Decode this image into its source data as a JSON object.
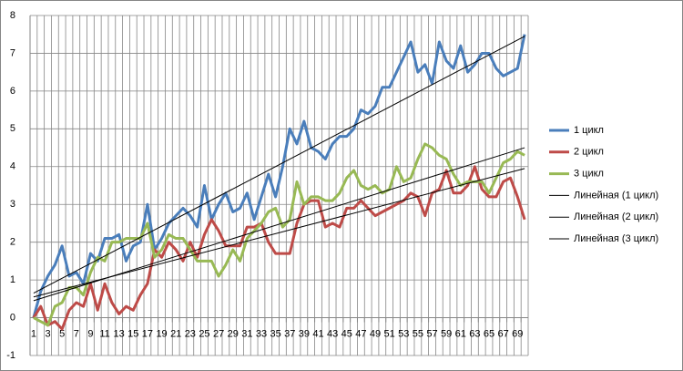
{
  "chart_data": {
    "type": "line",
    "categories": [
      1,
      null,
      3,
      null,
      5,
      null,
      7,
      null,
      9,
      null,
      11,
      null,
      13,
      null,
      15,
      null,
      17,
      null,
      19,
      null,
      21,
      null,
      23,
      null,
      25,
      null,
      27,
      null,
      29,
      null,
      31,
      null,
      33,
      null,
      35,
      null,
      37,
      null,
      39,
      null,
      41,
      null,
      43,
      null,
      45,
      null,
      47,
      null,
      49,
      null,
      51,
      null,
      53,
      null,
      55,
      null,
      57,
      null,
      59,
      null,
      61,
      null,
      63,
      null,
      65,
      null,
      67,
      null,
      69,
      null
    ],
    "series": [
      {
        "name": "1 цикл",
        "color": "#4a7ebb",
        "values": [
          0,
          0.7,
          1.1,
          1.4,
          1.9,
          1.1,
          1.2,
          0.9,
          1.7,
          1.5,
          2.1,
          2.1,
          2.2,
          1.5,
          1.9,
          2.0,
          3.0,
          1.8,
          2.1,
          2.5,
          2.7,
          2.9,
          2.7,
          2.4,
          3.5,
          2.6,
          3.0,
          3.3,
          2.8,
          2.9,
          3.3,
          2.6,
          3.2,
          3.8,
          3.2,
          4.0,
          5.0,
          4.6,
          5.2,
          4.5,
          4.4,
          4.2,
          4.6,
          4.8,
          4.8,
          5.0,
          5.5,
          5.4,
          5.6,
          6.1,
          6.1,
          6.5,
          6.9,
          7.3,
          6.5,
          6.7,
          6.2,
          7.3,
          6.8,
          6.6,
          7.2,
          6.5,
          6.7,
          7.0,
          7.0,
          6.6,
          6.4,
          6.5,
          6.6,
          7.5
        ]
      },
      {
        "name": "2 цикл",
        "color": "#be4b48",
        "values": [
          0,
          0.3,
          -0.2,
          -0.1,
          -0.3,
          0.2,
          0.4,
          0.3,
          0.9,
          0.2,
          0.9,
          0.4,
          0.1,
          0.3,
          0.2,
          0.6,
          0.9,
          1.8,
          1.6,
          2.0,
          1.8,
          1.5,
          2.0,
          1.6,
          2.2,
          2.6,
          2.3,
          1.9,
          1.9,
          1.9,
          2.4,
          2.4,
          2.5,
          2.0,
          1.7,
          1.7,
          1.7,
          2.5,
          3.0,
          3.1,
          3.1,
          2.4,
          2.5,
          2.4,
          2.9,
          2.9,
          3.1,
          2.9,
          2.7,
          2.8,
          2.9,
          3.0,
          3.1,
          3.3,
          3.2,
          2.7,
          3.3,
          3.4,
          3.9,
          3.3,
          3.3,
          3.5,
          4.0,
          3.4,
          3.2,
          3.2,
          3.6,
          3.7,
          3.2,
          2.6
        ]
      },
      {
        "name": "3 цикл",
        "color": "#98b954",
        "values": [
          0,
          -0.1,
          -0.2,
          0.3,
          0.4,
          0.8,
          0.8,
          0.6,
          1.2,
          1.6,
          1.5,
          2.0,
          2.0,
          2.1,
          2.1,
          2.1,
          2.5,
          1.6,
          1.8,
          2.2,
          2.1,
          2.1,
          1.8,
          1.5,
          1.5,
          1.5,
          1.1,
          1.4,
          1.8,
          1.5,
          2.1,
          2.3,
          2.5,
          2.8,
          2.9,
          2.4,
          2.6,
          3.6,
          3.0,
          3.2,
          3.2,
          3.1,
          3.1,
          3.3,
          3.7,
          3.9,
          3.5,
          3.4,
          3.5,
          3.3,
          3.4,
          4.0,
          3.6,
          3.7,
          4.2,
          4.6,
          4.5,
          4.3,
          4.2,
          3.8,
          3.5,
          3.6,
          3.6,
          3.6,
          3.3,
          3.7,
          4.1,
          4.2,
          4.4,
          4.3
        ]
      }
    ],
    "trendlines": [
      {
        "name": "Линейная (1 цикл)",
        "color": "#000000",
        "x": [
          1,
          70
        ],
        "values": [
          0.65,
          7.45
        ]
      },
      {
        "name": "Линейная (2 цикл)",
        "color": "#000000",
        "x": [
          1,
          70
        ],
        "values": [
          0.55,
          3.95
        ]
      },
      {
        "name": "Линейная (3 цикл)",
        "color": "#000000",
        "x": [
          1,
          70
        ],
        "values": [
          0.45,
          4.5
        ]
      }
    ],
    "ylim": [
      -1,
      8
    ],
    "yticks": [
      -1,
      0,
      1,
      2,
      3,
      4,
      5,
      6,
      7,
      8
    ],
    "grid": true,
    "legend": "right"
  }
}
